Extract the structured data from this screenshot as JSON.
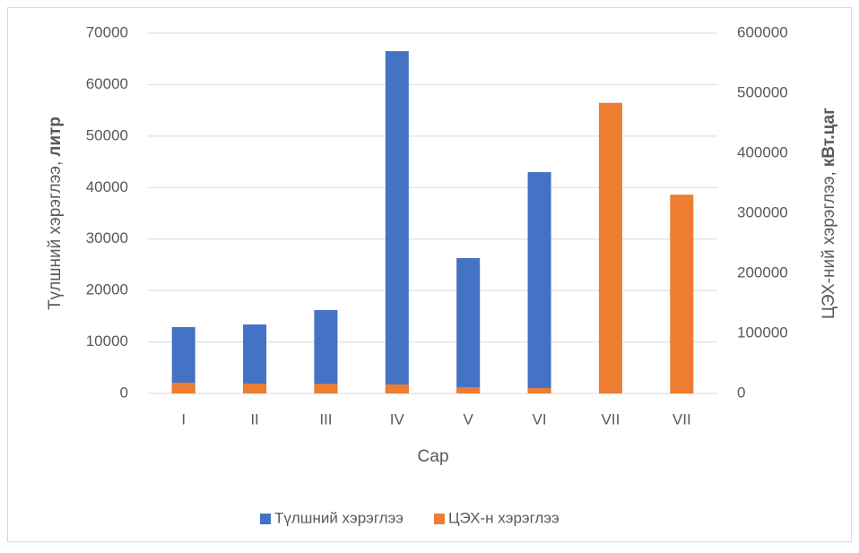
{
  "chart_data": {
    "type": "bar",
    "x_label": "Сар",
    "y_label": [
      "Түлшний хэрэглээ,",
      "литр"
    ],
    "y2_label": [
      "ЦЭХ-ний хэрэглээ,",
      "кВт.цаг"
    ],
    "categories": [
      "I",
      "II",
      "III",
      "IV",
      "V",
      "VI",
      "VII",
      "VII"
    ],
    "series": [
      {
        "name": "Түлшний хэрэглээ",
        "color": "#4472c4",
        "values": [
          12900,
          13400,
          16200,
          66500,
          26300,
          43000,
          0,
          0
        ]
      },
      {
        "name": "ЦЭХ-н хэрэглээ",
        "color": "#ed7d31",
        "axis": "y2",
        "values": [
          18000,
          16500,
          16000,
          15000,
          10500,
          9000,
          484000,
          331000
        ]
      }
    ],
    "ylim": [
      0,
      70000
    ],
    "yticks": [
      0,
      10000,
      20000,
      30000,
      40000,
      50000,
      60000,
      70000
    ],
    "y2lim": [
      0,
      600000
    ],
    "y2ticks": [
      0,
      100000,
      200000,
      300000,
      400000,
      500000,
      600000
    ],
    "grid": true,
    "legend": "bottom"
  }
}
